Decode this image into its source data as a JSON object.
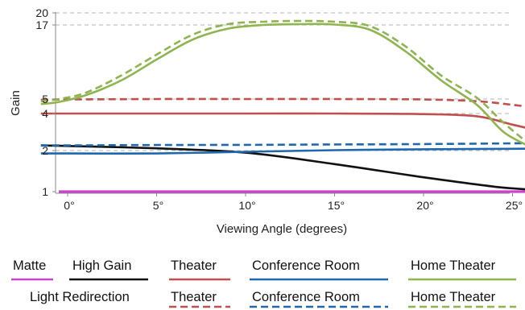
{
  "chart_data": {
    "type": "line",
    "xlabel": "Viewing Angle (degrees)",
    "ylabel": "Gain",
    "xlim": [
      -1.5,
      26
    ],
    "ylim": [
      1,
      20
    ],
    "x_ticks": [
      0,
      5,
      10,
      15,
      20,
      25
    ],
    "x_tick_labels": [
      "0°",
      "5°",
      "10°",
      "15°",
      "20°",
      "25°"
    ],
    "y_ticks": [
      1,
      2,
      4,
      5,
      17,
      20
    ],
    "y_tick_labels": [
      "1",
      "2",
      "4",
      "5",
      "17",
      "20"
    ],
    "gridlines_y": [
      2,
      4,
      5,
      17,
      20
    ],
    "series": [
      {
        "key": "matte",
        "group": "Matte",
        "name": "Matte",
        "color": "#cc44cc",
        "dash": false,
        "points": [
          [
            -0.5,
            1.0
          ],
          [
            5,
            1.0
          ],
          [
            10,
            1.0
          ],
          [
            15,
            1.0
          ],
          [
            20,
            1.0
          ],
          [
            25,
            1.0
          ],
          [
            26,
            1.0
          ]
        ]
      },
      {
        "key": "high-gain",
        "group": "High Gain",
        "name": "High Gain",
        "color": "#111111",
        "dash": false,
        "points": [
          [
            -1.5,
            2.28
          ],
          [
            0,
            2.25
          ],
          [
            5,
            2.12
          ],
          [
            10,
            1.95
          ],
          [
            15,
            1.67
          ],
          [
            20,
            1.35
          ],
          [
            24,
            1.12
          ],
          [
            26,
            1.05
          ]
        ]
      },
      {
        "key": "theater",
        "group": "Theater",
        "name": "Theater",
        "color": "#c0504d",
        "dash": false,
        "points": [
          [
            -1.5,
            4.0
          ],
          [
            0,
            4.0
          ],
          [
            5,
            4.0
          ],
          [
            10,
            4.0
          ],
          [
            15,
            4.0
          ],
          [
            20,
            3.97
          ],
          [
            23,
            3.85
          ],
          [
            25,
            3.4
          ],
          [
            26,
            3.18
          ]
        ]
      },
      {
        "key": "conference-room",
        "group": "Conference Room",
        "name": "Conference Room",
        "color": "#1f67ae",
        "dash": false,
        "points": [
          [
            -1.5,
            1.93
          ],
          [
            0,
            1.93
          ],
          [
            5,
            1.93
          ],
          [
            10,
            1.97
          ],
          [
            15,
            2.02
          ],
          [
            20,
            2.07
          ],
          [
            26,
            2.1
          ]
        ]
      },
      {
        "key": "home-theater",
        "group": "Home Theater",
        "name": "Home Theater",
        "color": "#8fb450",
        "dash": false,
        "points": [
          [
            -1.5,
            4.65
          ],
          [
            -0.5,
            4.8
          ],
          [
            1,
            5.6
          ],
          [
            3,
            8.0
          ],
          [
            5,
            11.4
          ],
          [
            7,
            14.6
          ],
          [
            9,
            16.4
          ],
          [
            11,
            17.0
          ],
          [
            13,
            17.2
          ],
          [
            15,
            17.1
          ],
          [
            17,
            16.2
          ],
          [
            19,
            12.7
          ],
          [
            21,
            8.0
          ],
          [
            23,
            4.6
          ],
          [
            24.5,
            3.0
          ],
          [
            26,
            2.2
          ]
        ]
      },
      {
        "key": "lr-theater",
        "group": "Theater",
        "name": "Theater",
        "color": "#c0504d",
        "dash": true,
        "points": [
          [
            -1.5,
            4.95
          ],
          [
            0,
            4.97
          ],
          [
            5,
            5.0
          ],
          [
            10,
            5.0
          ],
          [
            15,
            5.0
          ],
          [
            20,
            4.97
          ],
          [
            23,
            4.85
          ],
          [
            25,
            4.6
          ],
          [
            26,
            4.45
          ]
        ]
      },
      {
        "key": "lr-conference-room",
        "group": "Conference Room",
        "name": "Conference Room",
        "color": "#1f67ae",
        "dash": true,
        "points": [
          [
            -1.5,
            2.28
          ],
          [
            0,
            2.28
          ],
          [
            5,
            2.3
          ],
          [
            10,
            2.31
          ],
          [
            15,
            2.33
          ],
          [
            20,
            2.35
          ],
          [
            26,
            2.4
          ]
        ]
      },
      {
        "key": "lr-home-theater",
        "group": "Home Theater",
        "name": "Home Theater",
        "color": "#8fb450",
        "dash": true,
        "points": [
          [
            -1.5,
            4.85
          ],
          [
            -0.5,
            5.0
          ],
          [
            1,
            6.0
          ],
          [
            3,
            8.8
          ],
          [
            5,
            12.2
          ],
          [
            7,
            15.4
          ],
          [
            9,
            17.2
          ],
          [
            11,
            17.8
          ],
          [
            13,
            18.0
          ],
          [
            15,
            17.8
          ],
          [
            17,
            16.8
          ],
          [
            19,
            13.5
          ],
          [
            21,
            8.8
          ],
          [
            23,
            5.2
          ],
          [
            24.5,
            3.5
          ],
          [
            26,
            2.3
          ]
        ]
      }
    ],
    "legend": {
      "placement": "bottom",
      "row1": [
        {
          "label": "Matte",
          "series": "matte"
        },
        {
          "label": "High Gain",
          "series": "high-gain"
        },
        {
          "label": "Theater",
          "series": "theater"
        },
        {
          "label": "Conference Room",
          "series": "conference-room"
        },
        {
          "label": "Home Theater",
          "series": "home-theater"
        }
      ],
      "row2_title": "Light Redirection",
      "row2": [
        {
          "label": "Theater",
          "series": "lr-theater"
        },
        {
          "label": "Conference Room",
          "series": "lr-conference-room"
        },
        {
          "label": "Home Theater",
          "series": "lr-home-theater"
        }
      ]
    }
  }
}
